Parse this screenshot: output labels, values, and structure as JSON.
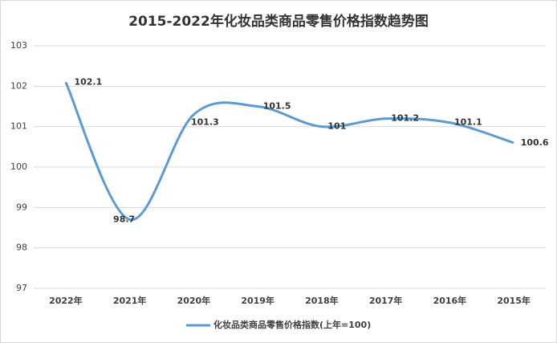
{
  "chart_data": {
    "type": "line",
    "title": "2015-2022年化妆品类商品零售价格指数趋势图",
    "categories": [
      "2022年",
      "2021年",
      "2020年",
      "2019年",
      "2018年",
      "2017年",
      "2016年",
      "2015年"
    ],
    "series": [
      {
        "name": "化妆品类商品零售价格指数(上年=100)",
        "color": "#5b9bd5",
        "values": [
          102.1,
          98.7,
          101.3,
          101.5,
          101,
          101.2,
          101.1,
          100.6
        ]
      }
    ],
    "ylim": [
      97,
      103
    ],
    "yticks": [
      97,
      98,
      99,
      100,
      101,
      102,
      103
    ],
    "grid": true,
    "smooth": true,
    "legend": "bottom"
  }
}
